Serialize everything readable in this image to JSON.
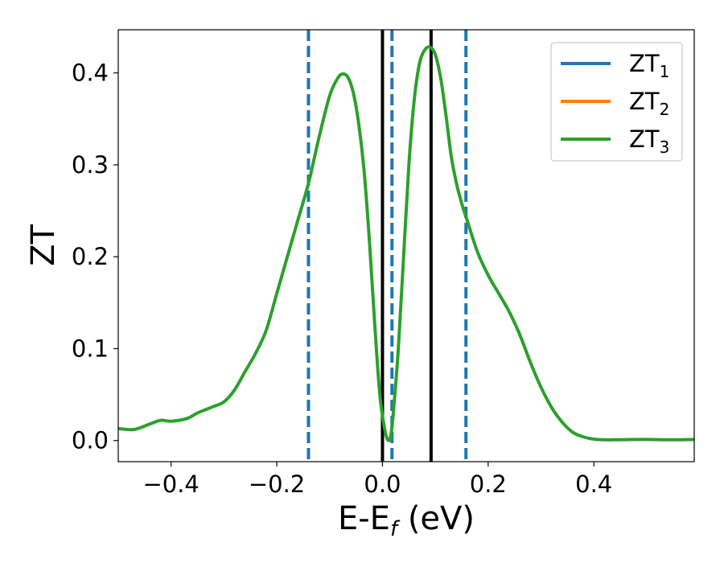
{
  "chart_data": {
    "type": "line",
    "xlabel": {
      "main": "E-E",
      "sub": "f",
      "rest": " (eV)"
    },
    "ylabel": "ZT",
    "xlim": [
      -0.5,
      0.59
    ],
    "ylim": [
      -0.023,
      0.447
    ],
    "xticks": [
      {
        "value": -0.4,
        "label": "−0.4"
      },
      {
        "value": -0.2,
        "label": "−0.2"
      },
      {
        "value": 0.0,
        "label": "0.0"
      },
      {
        "value": 0.2,
        "label": "0.2"
      },
      {
        "value": 0.4,
        "label": "0.4"
      }
    ],
    "yticks": [
      {
        "value": 0.0,
        "label": "0.0"
      },
      {
        "value": 0.1,
        "label": "0.1"
      },
      {
        "value": 0.2,
        "label": "0.2"
      },
      {
        "value": 0.3,
        "label": "0.3"
      },
      {
        "value": 0.4,
        "label": "0.4"
      }
    ],
    "grid": false,
    "legend_position": "top-right",
    "series": [
      {
        "name": "ZT",
        "sub": "1",
        "color": "#1f77b4"
      },
      {
        "name": "ZT",
        "sub": "2",
        "color": "#ff7f0e"
      },
      {
        "name": "ZT",
        "sub": "3",
        "color": "#2ca02c"
      }
    ],
    "curve": {
      "color": "#2ca02c",
      "x": [
        -0.5,
        -0.47,
        -0.44,
        -0.42,
        -0.4,
        -0.37,
        -0.35,
        -0.32,
        -0.3,
        -0.28,
        -0.26,
        -0.24,
        -0.22,
        -0.2,
        -0.18,
        -0.16,
        -0.14,
        -0.12,
        -0.1,
        -0.085,
        -0.075,
        -0.065,
        -0.055,
        -0.045,
        -0.035,
        -0.025,
        -0.015,
        -0.005,
        0.005,
        0.012,
        0.017,
        0.022,
        0.03,
        0.04,
        0.05,
        0.06,
        0.07,
        0.08,
        0.09,
        0.1,
        0.11,
        0.12,
        0.13,
        0.14,
        0.15,
        0.16,
        0.18,
        0.2,
        0.22,
        0.24,
        0.26,
        0.28,
        0.3,
        0.32,
        0.34,
        0.36,
        0.38,
        0.4,
        0.42,
        0.44,
        0.46,
        0.5,
        0.55,
        0.59
      ],
      "y": [
        0.013,
        0.012,
        0.018,
        0.022,
        0.021,
        0.024,
        0.03,
        0.037,
        0.042,
        0.055,
        0.075,
        0.095,
        0.12,
        0.16,
        0.2,
        0.24,
        0.28,
        0.33,
        0.375,
        0.394,
        0.399,
        0.395,
        0.378,
        0.345,
        0.295,
        0.22,
        0.13,
        0.05,
        0.01,
        0.0,
        0.01,
        0.04,
        0.1,
        0.2,
        0.3,
        0.37,
        0.41,
        0.425,
        0.428,
        0.42,
        0.395,
        0.355,
        0.31,
        0.28,
        0.258,
        0.24,
        0.205,
        0.18,
        0.16,
        0.14,
        0.115,
        0.085,
        0.058,
        0.036,
        0.02,
        0.009,
        0.004,
        0.0015,
        0.0008,
        0.0008,
        0.001,
        0.0012,
        0.0008,
        0.0012
      ]
    },
    "solid_vlines": [
      {
        "x": 0.0,
        "color": "#000000"
      },
      {
        "x": 0.092,
        "color": "#000000"
      }
    ],
    "dashed_vlines": [
      {
        "x": -0.14,
        "color": "#1f77b4"
      },
      {
        "x": 0.018,
        "color": "#1f77b4"
      },
      {
        "x": 0.158,
        "color": "#1f77b4"
      }
    ]
  }
}
